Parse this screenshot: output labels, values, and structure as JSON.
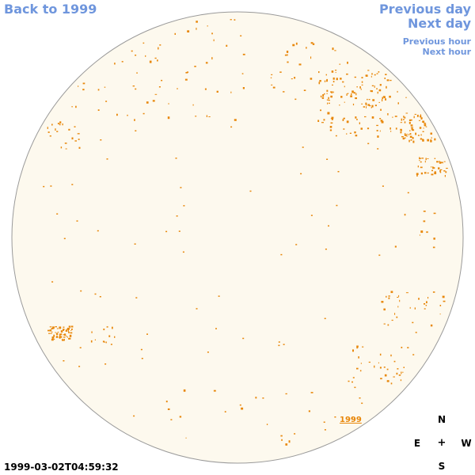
{
  "nav": {
    "back_label": "Back to 1999",
    "previous_day_label": "Previous day",
    "next_day_label": "Next day",
    "previous_hour_label": "Previous hour",
    "next_hour_label": "Next hour"
  },
  "image": {
    "timestamp": "1999-03-02T04:59:32",
    "year_marker": "1999"
  },
  "compass": {
    "north": "N",
    "south": "S",
    "east": "E",
    "west": "W",
    "center": "+"
  },
  "colors": {
    "link": "#6f96dd",
    "disk_fill": "#fdf9ee",
    "disk_outline": "#9a9a9a",
    "region_contour": "#e8870a",
    "background": "#ffffff"
  }
}
